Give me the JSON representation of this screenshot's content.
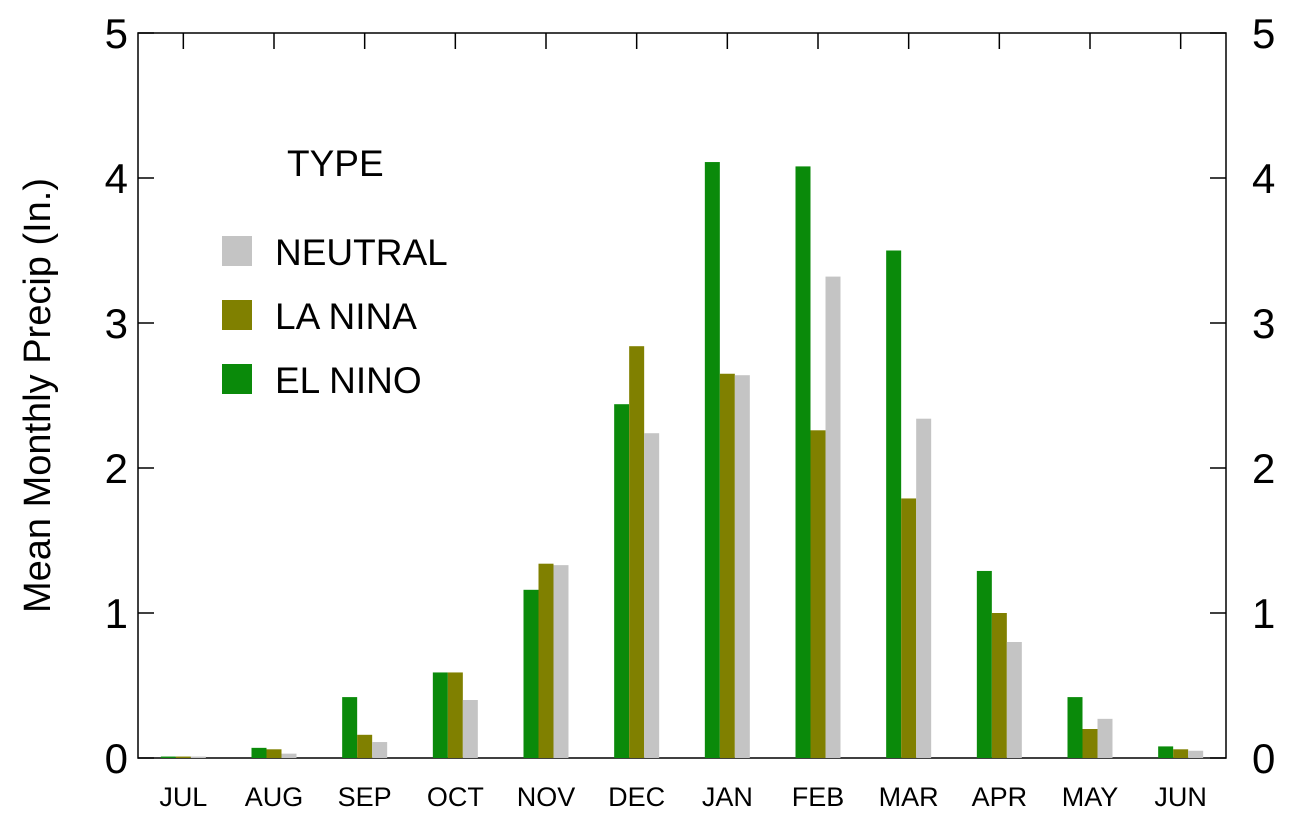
{
  "chart_data": {
    "type": "bar",
    "title": "",
    "xlabel": "",
    "ylabel": "Mean Monthly Precip (In.)",
    "ylim": [
      0,
      5
    ],
    "y_ticks": [
      "0",
      "1",
      "2",
      "3",
      "4",
      "5"
    ],
    "y_ticks_right": [
      "0",
      "1",
      "2",
      "3",
      "4",
      "5"
    ],
    "categories": [
      "JUL",
      "AUG",
      "SEP",
      "OCT",
      "NOV",
      "DEC",
      "JAN",
      "FEB",
      "MAR",
      "APR",
      "MAY",
      "JUN"
    ],
    "legend": {
      "title": "TYPE",
      "placement": "top-left"
    },
    "series": [
      {
        "name": "EL NINO",
        "color": "#0a8a0a",
        "values": [
          0.01,
          0.07,
          0.42,
          0.59,
          1.16,
          2.44,
          4.11,
          4.08,
          3.5,
          1.29,
          0.42,
          0.08
        ]
      },
      {
        "name": "LA NINA",
        "color": "#808000",
        "values": [
          0.01,
          0.06,
          0.16,
          0.59,
          1.34,
          2.84,
          2.65,
          2.26,
          1.79,
          1.0,
          0.2,
          0.06
        ]
      },
      {
        "name": "NEUTRAL",
        "color": "#c4c4c4",
        "values": [
          0.01,
          0.03,
          0.11,
          0.4,
          1.33,
          2.24,
          2.64,
          3.32,
          2.34,
          0.8,
          0.27,
          0.05
        ]
      }
    ],
    "legend_order": [
      "NEUTRAL",
      "LA NINA",
      "EL NINO"
    ],
    "grid": false
  }
}
